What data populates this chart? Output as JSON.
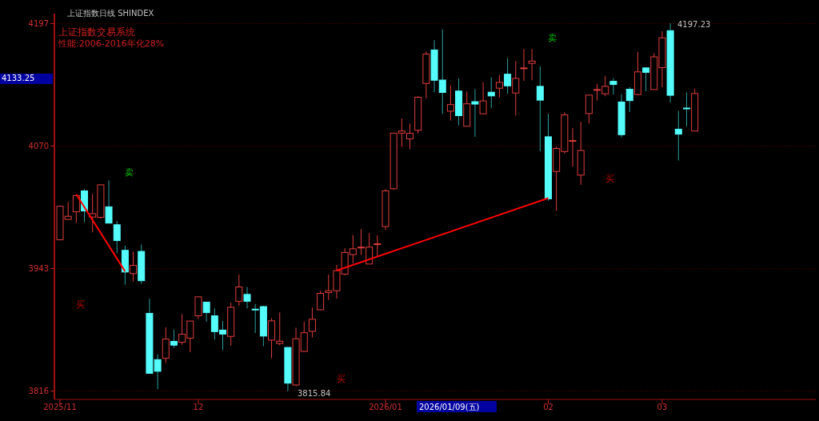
{
  "chart_data": {
    "type": "candlestick",
    "title": "上证指数日线 SHINDEX",
    "subtitle": "上证指数交易系统",
    "annotations": [
      "性能:2006-2016年化28%",
      "卖",
      "买",
      "买",
      "卖",
      "买",
      "3815.84",
      "4197.23",
      "4133.25",
      "2026/01/09(五)"
    ],
    "categories": [
      "2025/11",
      null,
      null,
      null,
      null,
      null,
      null,
      null,
      null,
      null,
      null,
      null,
      null,
      null,
      null,
      null,
      null,
      "12",
      null,
      null,
      null,
      null,
      null,
      null,
      null,
      null,
      null,
      null,
      null,
      null,
      null,
      null,
      null,
      null,
      null,
      null,
      null,
      null,
      null,
      null,
      "2026/01",
      null,
      null,
      null,
      null,
      null,
      null,
      null,
      null,
      null,
      null,
      null,
      null,
      null,
      null,
      null,
      null,
      null,
      null,
      null,
      "02",
      null,
      null,
      null,
      null,
      null,
      null,
      null,
      null,
      null,
      null,
      null,
      null,
      null,
      "03",
      null,
      null,
      null,
      null
    ],
    "ohlc": [
      [
        3972.8,
        4008.4,
        3972.3,
        4007.6
      ],
      [
        3993.9,
        4012.0,
        3993.9,
        3997.2
      ],
      [
        4001.8,
        4018.6,
        3990.6,
        4018.6
      ],
      [
        4023.5,
        4025.4,
        3991.2,
        4002.7
      ],
      [
        3996.4,
        4020.2,
        3980.5,
        3999.9
      ],
      [
        3996.1,
        4030.3,
        3994.7,
        4029.8
      ],
      [
        4007.0,
        4034.4,
        3990.1,
        3990.1
      ],
      [
        3988.4,
        3992.3,
        3958.9,
        3972.0
      ],
      [
        3961.9,
        3966.8,
        3926.3,
        3939.4
      ],
      [
        3937.8,
        3960.5,
        3929.6,
        3946.3
      ],
      [
        3960.8,
        3967.9,
        3927.1,
        3930.4
      ],
      [
        3896.5,
        3911.8,
        3834.4,
        3834.4
      ],
      [
        3848.6,
        3854.1,
        3818.0,
        3836.5
      ],
      [
        3850.0,
        3882.0,
        3845.3,
        3869.9
      ],
      [
        3867.5,
        3879.8,
        3860.6,
        3863.6
      ],
      [
        3866.6,
        3895.7,
        3863.9,
        3874.9
      ],
      [
        3870.8,
        3888.6,
        3856.3,
        3888.6
      ],
      [
        3894.0,
        3913.7,
        3890.7,
        3913.7
      ],
      [
        3908.2,
        3908.2,
        3888.0,
        3897.3
      ],
      [
        3894.0,
        3901.7,
        3869.4,
        3877.6
      ],
      [
        3879.2,
        3888.6,
        3858.4,
        3875.1
      ],
      [
        3872.7,
        3907.7,
        3863.1,
        3902.8
      ],
      [
        3909.1,
        3936.7,
        3904.4,
        3923.9
      ],
      [
        3916.2,
        3923.9,
        3901.7,
        3909.1
      ],
      [
        3900.9,
        3906.3,
        3876.2,
        3900.3
      ],
      [
        3903.6,
        3904.4,
        3862.5,
        3873.0
      ],
      [
        3868.8,
        3891.6,
        3850.0,
        3888.8
      ],
      [
        3865.3,
        3897.3,
        3863.4,
        3867.7
      ],
      [
        3861.2,
        3862.0,
        3815.84,
        3824.2
      ],
      [
        3822.3,
        3881.7,
        3820.9,
        3870.2
      ],
      [
        3857.1,
        3888.0,
        3856.5,
        3876.5
      ],
      [
        3877.9,
        3902.5,
        3871.6,
        3890.5
      ],
      [
        3900.3,
        3920.0,
        3900.3,
        3917.3
      ],
      [
        3918.1,
        3936.7,
        3910.4,
        3920.0
      ],
      [
        3920.0,
        3946.8,
        3911.8,
        3940.8
      ],
      [
        3937.3,
        3964.1,
        3935.9,
        3959.7
      ],
      [
        3957.5,
        3977.8,
        3948.2,
        3963.5
      ],
      [
        3964.4,
        3983.8,
        3957.0,
        3965.2
      ],
      [
        3947.7,
        3979.7,
        3947.7,
        3965.2
      ],
      [
        3968.2,
        3977.5,
        3955.0,
        3968.7
      ],
      [
        3986.5,
        4025.4,
        3983.0,
        4023.5
      ],
      [
        4025.7,
        4083.4,
        4024.8,
        4083.4
      ],
      [
        4083.4,
        4098.7,
        4069.2,
        4085.6
      ],
      [
        4077.4,
        4093.3,
        4066.7,
        4083.2
      ],
      [
        4086.4,
        4121.7,
        4083.2,
        4120.6
      ],
      [
        4134.9,
        4168.0,
        4119.5,
        4165.3
      ],
      [
        4169.6,
        4179.8,
        4125.8,
        4138.2
      ],
      [
        4138.4,
        4191.0,
        4103.4,
        4125.6
      ],
      [
        4106.1,
        4133.0,
        4096.5,
        4113.0
      ],
      [
        4127.0,
        4140.1,
        4091.4,
        4101.5
      ],
      [
        4090.5,
        4126.4,
        4090.5,
        4113.8
      ],
      [
        4116.0,
        4128.9,
        4079.6,
        4113.5
      ],
      [
        4103.4,
        4136.2,
        4103.4,
        4116.8
      ],
      [
        4125.8,
        4141.2,
        4109.4,
        4122.0
      ],
      [
        4130.0,
        4143.6,
        4120.1,
        4136.0
      ],
      [
        4144.5,
        4161.2,
        4124.2,
        4132.4
      ],
      [
        4125.0,
        4158.4,
        4101.5,
        4140.1
      ],
      [
        4150.2,
        4170.5,
        4137.6,
        4151.0
      ],
      [
        4155.7,
        4170.5,
        4138.2,
        4158.1
      ],
      [
        4131.9,
        4152.7,
        4064.5,
        4117.6
      ],
      [
        4079.6,
        4103.4,
        4013.3,
        4015.3
      ],
      [
        4043.7,
        4069.4,
        4002.9,
        4067.5
      ],
      [
        4064.3,
        4104.8,
        4062.3,
        4102.3
      ],
      [
        4074.9,
        4088.6,
        4048.6,
        4075.8
      ],
      [
        4039.9,
        4095.2,
        4029.8,
        4065.4
      ],
      [
        4103.7,
        4122.8,
        4093.3,
        4122.8
      ],
      [
        4127.8,
        4134.3,
        4117.1,
        4128.6
      ],
      [
        4124.2,
        4142.5,
        4121.7,
        4131.9
      ],
      [
        4137.1,
        4140.3,
        4123.4,
        4133.8
      ],
      [
        4115.7,
        4123.7,
        4079.0,
        4081.8
      ],
      [
        4128.9,
        4131.0,
        4105.3,
        4117.1
      ],
      [
        4123.4,
        4167.7,
        4122.6,
        4146.9
      ],
      [
        4151.0,
        4151.8,
        4126.7,
        4146.4
      ],
      [
        4128.6,
        4166.3,
        4128.6,
        4162.5
      ],
      [
        4151.3,
        4189.1,
        4131.0,
        4182.2
      ],
      [
        4189.6,
        4197.23,
        4115.2,
        4122.6
      ],
      [
        4087.5,
        4106.4,
        4055.0,
        4082.3
      ],
      [
        4109.4,
        4125.6,
        4090.3,
        4108.6
      ],
      [
        4085.6,
        4129.7,
        4085.6,
        4124.5
      ]
    ],
    "series": [
      {
        "type": "line",
        "color": "#ff0000",
        "values": [
          null,
          null,
          4020,
          null,
          null,
          null,
          null,
          null,
          3940,
          null,
          null,
          null,
          null,
          null,
          null,
          null,
          null,
          null,
          null,
          null,
          null,
          null,
          null,
          null,
          null,
          null,
          null,
          null,
          null,
          null,
          null,
          null,
          null,
          null,
          null,
          null,
          null,
          null,
          null,
          null,
          null,
          null,
          null,
          null,
          null,
          null,
          null,
          null,
          null,
          null,
          null,
          null,
          null,
          null,
          null,
          null,
          null,
          null,
          null,
          null,
          null,
          null,
          null,
          null,
          null,
          null,
          null,
          null,
          null,
          null,
          null,
          null,
          null,
          null,
          null,
          null,
          null,
          null,
          null
        ]
      },
      {
        "type": "line",
        "color": "#ff0000",
        "values": [
          null,
          null,
          null,
          null,
          null,
          null,
          null,
          null,
          null,
          null,
          null,
          null,
          null,
          null,
          null,
          null,
          null,
          null,
          null,
          null,
          null,
          null,
          null,
          null,
          null,
          null,
          null,
          null,
          null,
          null,
          null,
          null,
          null,
          null,
          3941,
          null,
          null,
          null,
          null,
          null,
          null,
          null,
          null,
          null,
          null,
          null,
          null,
          null,
          null,
          null,
          null,
          null,
          null,
          null,
          null,
          null,
          null,
          null,
          null,
          null,
          4016,
          null,
          null,
          null,
          null,
          null,
          null,
          null,
          null,
          null,
          null,
          null,
          null,
          null,
          null,
          null,
          null,
          null,
          null
        ]
      }
    ],
    "ylim": [
      3814,
      4199
    ],
    "yticks": [
      4197,
      4070,
      3943,
      3816
    ],
    "grid": "y"
  }
}
